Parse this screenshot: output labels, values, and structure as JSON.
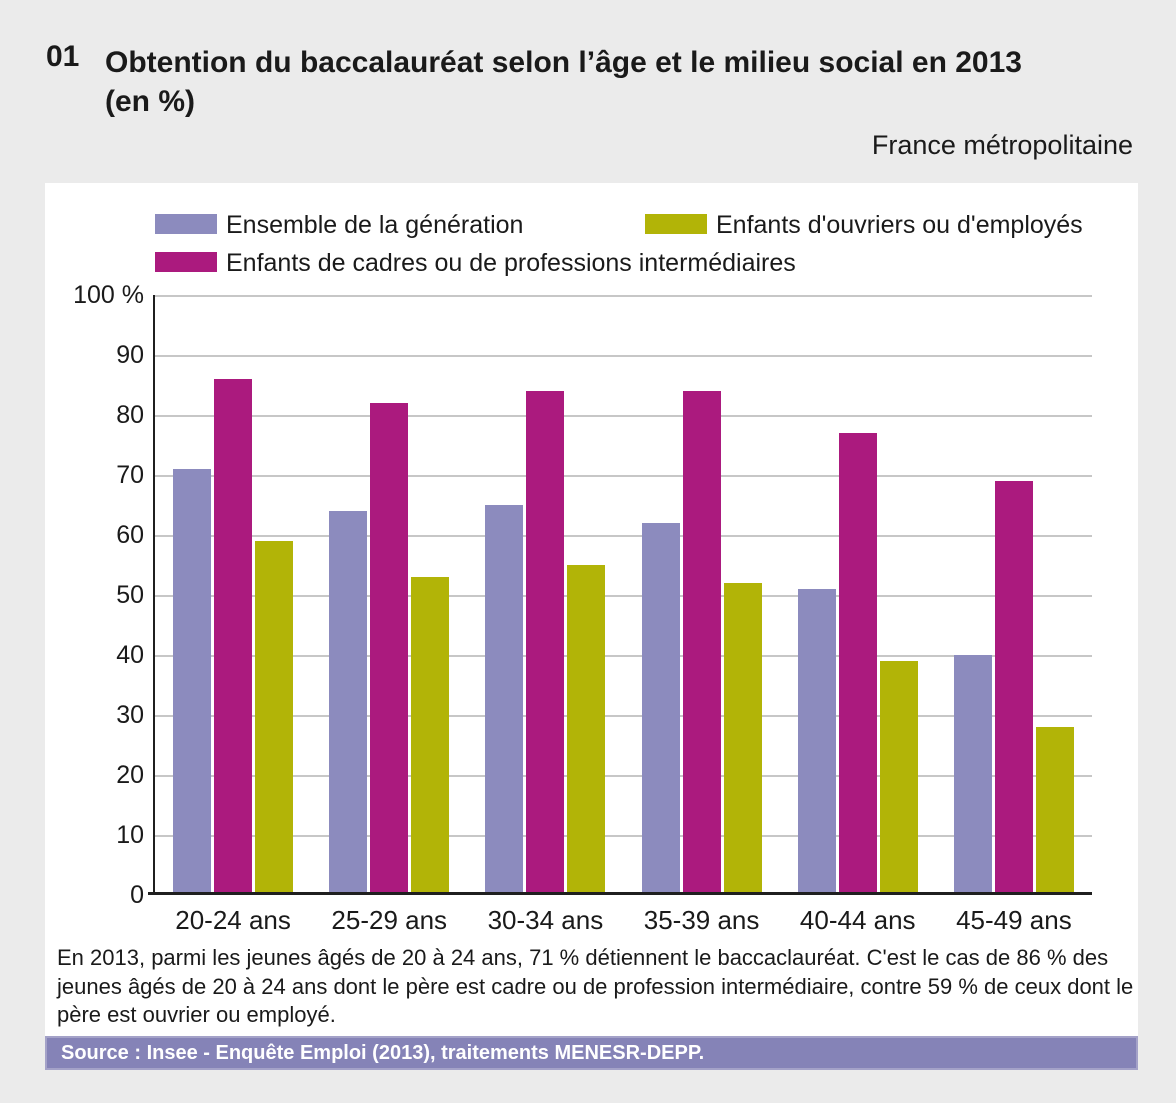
{
  "header": {
    "number": "01",
    "title": "Obtention du baccalauréat selon l’âge et le milieu social en 2013",
    "unit_line": "(en %)",
    "region": "France métropolitaine"
  },
  "legend": {
    "items": [
      {
        "label": "Ensemble de la génération",
        "color": "#8c8bbe"
      },
      {
        "label": "Enfants d'ouvriers ou d'employés",
        "color": "#b2b407"
      },
      {
        "label": "Enfants de cadres ou de professions intermédiaires",
        "color": "#ab1a7e"
      }
    ]
  },
  "chart_data": {
    "type": "bar",
    "categories": [
      "20-24 ans",
      "25-29 ans",
      "30-34 ans",
      "35-39 ans",
      "40-44 ans",
      "45-49 ans"
    ],
    "series": [
      {
        "name": "Ensemble de la génération",
        "color": "#8c8bbe",
        "values": [
          71,
          64,
          65,
          62,
          51,
          40
        ]
      },
      {
        "name": "Enfants de cadres ou de professions intermédiaires",
        "color": "#ab1a7e",
        "values": [
          86,
          82,
          84,
          84,
          77,
          69
        ]
      },
      {
        "name": "Enfants d'ouvriers ou d'employés",
        "color": "#b2b407",
        "values": [
          59,
          53,
          55,
          52,
          39,
          28
        ]
      }
    ],
    "title": "Obtention du baccalauréat selon l’âge et le milieu social en 2013 (en %)",
    "xlabel": "",
    "ylabel": "%",
    "ylim": [
      0,
      100
    ],
    "ytick_step": 10,
    "ytick_top_label": "100 %",
    "grid": true,
    "legend_position": "top"
  },
  "caption": "En 2013, parmi les jeunes âgés de 20 à 24 ans, 71 % détiennent le baccaclauréat. C'est le cas de 86 % des jeunes âgés de 20 à 24 ans dont le père est cadre ou de profession intermédiaire, contre 59 % de ceux dont le père est ouvrier ou employé.",
  "source": "Source : Insee - Enquête Emploi (2013), traitements MENESR-DEPP.",
  "colors": {
    "page_bg": "#ebebeb",
    "panel_bg": "#ffffff",
    "gridline": "#c7c7c7",
    "axis": "#1f1f1f",
    "text": "#1a1a1a",
    "source_bar_bg": "#8583b7",
    "source_bar_border": "#a4a2c8",
    "source_text": "#ffffff"
  }
}
